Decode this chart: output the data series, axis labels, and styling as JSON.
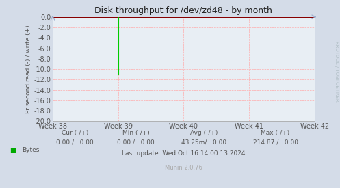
{
  "title": "Disk throughput for /dev/zd48 - by month",
  "ylabel": "Pr second read (-) / write (+)",
  "ylim": [
    -20.0,
    0.0
  ],
  "yticks": [
    0.0,
    -2.0,
    -4.0,
    -6.0,
    -8.0,
    -10.0,
    -12.0,
    -14.0,
    -16.0,
    -18.0,
    -20.0
  ],
  "ytick_labels": [
    "0.0",
    "-2.0",
    "-4.0",
    "-6.0",
    "-8.0",
    "-10.0",
    "-12.0",
    "-14.0",
    "-16.0",
    "-18.0",
    "-20.0"
  ],
  "xtick_labels": [
    "Week 38",
    "Week 39",
    "Week 40",
    "Week 41",
    "Week 42"
  ],
  "xtick_positions": [
    0.0,
    0.25,
    0.5,
    0.75,
    1.0
  ],
  "bg_color": "#d4dce8",
  "plot_bg_color": "#e8eef4",
  "grid_color": "#ffaaaa",
  "title_color": "#222222",
  "axis_color": "#aaaaaa",
  "top_line_color": "#880000",
  "green_line_x": 0.25,
  "green_line_y_bottom": -11.0,
  "green_line_color": "#00cc00",
  "legend_label": "Bytes",
  "legend_color": "#00aa00",
  "last_update": "Last update: Wed Oct 16 14:00:13 2024",
  "munin_version": "Munin 2.0.76",
  "rrdtool_text": "RRDTOOL / TOBI OETIKER",
  "rrdtool_color": "#b0bec5",
  "font_color_axis": "#555555",
  "stats_cur_label": "Cur (-/+)",
  "stats_min_label": "Min (-/+)",
  "stats_avg_label": "Avg (-/+)",
  "stats_max_label": "Max (-/+)",
  "stats_cur_val": "0.00 /   0.00",
  "stats_min_val": "0.00 /   0.00",
  "stats_avg_val": "43.25m/   0.00",
  "stats_max_val": "214.87 /   0.00"
}
